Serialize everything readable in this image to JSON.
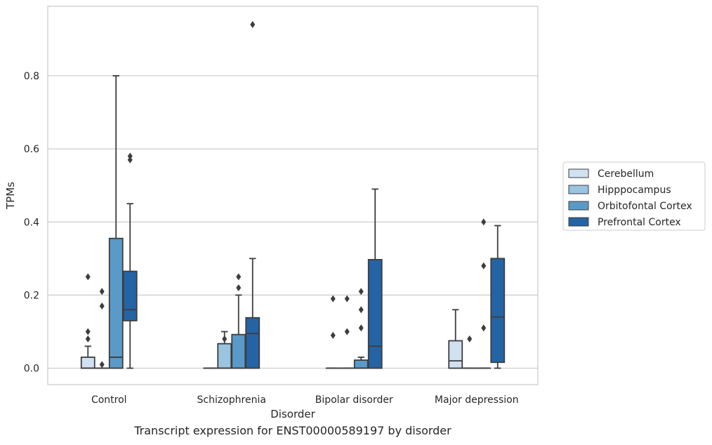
{
  "caption": "Transcript expression for ENST00000589197 by disorder",
  "chart_data": {
    "type": "box",
    "xlabel": "Disorder",
    "ylabel": "TPMs",
    "ylim": [
      -0.045,
      0.99
    ],
    "yticks": [
      0.0,
      0.2,
      0.4,
      0.6,
      0.8
    ],
    "ytick_labels": [
      "0.0",
      "0.2",
      "0.4",
      "0.6",
      "0.8"
    ],
    "grid": true,
    "legend_position": "right",
    "categories": [
      "Control",
      "Schizophrenia",
      "Bipolar disorder",
      "Major depression"
    ],
    "series": [
      {
        "name": "Cerebellum",
        "color": "#d0e1f2",
        "boxes": [
          {
            "min": 0.0,
            "q1": 0.0,
            "median": 0.0,
            "q3": 0.03,
            "max": 0.06,
            "outliers": [
              0.08,
              0.1,
              0.25
            ]
          },
          {
            "min": 0.0,
            "q1": 0.0,
            "median": 0.0,
            "q3": 0.0,
            "max": 0.0,
            "outliers": []
          },
          {
            "min": 0.0,
            "q1": 0.0,
            "median": 0.0,
            "q3": 0.0,
            "max": 0.0,
            "outliers": [
              0.09,
              0.19
            ]
          },
          {
            "min": 0.0,
            "q1": 0.0,
            "median": 0.02,
            "q3": 0.075,
            "max": 0.16,
            "outliers": []
          }
        ]
      },
      {
        "name": "Hipppocampus",
        "color": "#9ac4df",
        "boxes": [
          {
            "min": 0.0,
            "q1": 0.0,
            "median": 0.0,
            "q3": 0.0,
            "max": 0.0,
            "outliers": [
              0.01,
              0.17,
              0.21
            ]
          },
          {
            "min": 0.0,
            "q1": 0.0,
            "median": 0.0,
            "q3": 0.067,
            "max": 0.1,
            "outliers": [
              0.08
            ]
          },
          {
            "min": 0.0,
            "q1": 0.0,
            "median": 0.0,
            "q3": 0.0,
            "max": 0.0,
            "outliers": [
              0.1,
              0.19
            ]
          },
          {
            "min": 0.0,
            "q1": 0.0,
            "median": 0.0,
            "q3": 0.0,
            "max": 0.0,
            "outliers": [
              0.08
            ]
          }
        ]
      },
      {
        "name": "Orbitofontal Cortex",
        "color": "#5a9ac8",
        "boxes": [
          {
            "min": 0.0,
            "q1": 0.0,
            "median": 0.03,
            "q3": 0.355,
            "max": 0.8,
            "outliers": []
          },
          {
            "min": 0.0,
            "q1": 0.0,
            "median": 0.0,
            "q3": 0.092,
            "max": 0.2,
            "outliers": [
              0.22,
              0.25
            ]
          },
          {
            "min": 0.0,
            "q1": 0.0,
            "median": 0.0,
            "q3": 0.022,
            "max": 0.03,
            "outliers": [
              0.11,
              0.16,
              0.21
            ]
          },
          {
            "min": 0.0,
            "q1": 0.0,
            "median": 0.0,
            "q3": 0.0,
            "max": 0.0,
            "outliers": [
              0.11,
              0.28,
              0.4
            ]
          }
        ]
      },
      {
        "name": "Prefrontal Cortex",
        "color": "#2464a5",
        "boxes": [
          {
            "min": 0.0,
            "q1": 0.13,
            "median": 0.16,
            "q3": 0.265,
            "max": 0.45,
            "outliers": [
              0.57,
              0.58
            ]
          },
          {
            "min": 0.0,
            "q1": 0.0,
            "median": 0.095,
            "q3": 0.138,
            "max": 0.3,
            "outliers": [
              0.94
            ]
          },
          {
            "min": 0.0,
            "q1": 0.0,
            "median": 0.06,
            "q3": 0.297,
            "max": 0.49,
            "outliers": []
          },
          {
            "min": 0.0,
            "q1": 0.016,
            "median": 0.14,
            "q3": 0.3,
            "max": 0.39,
            "outliers": []
          }
        ]
      }
    ]
  }
}
